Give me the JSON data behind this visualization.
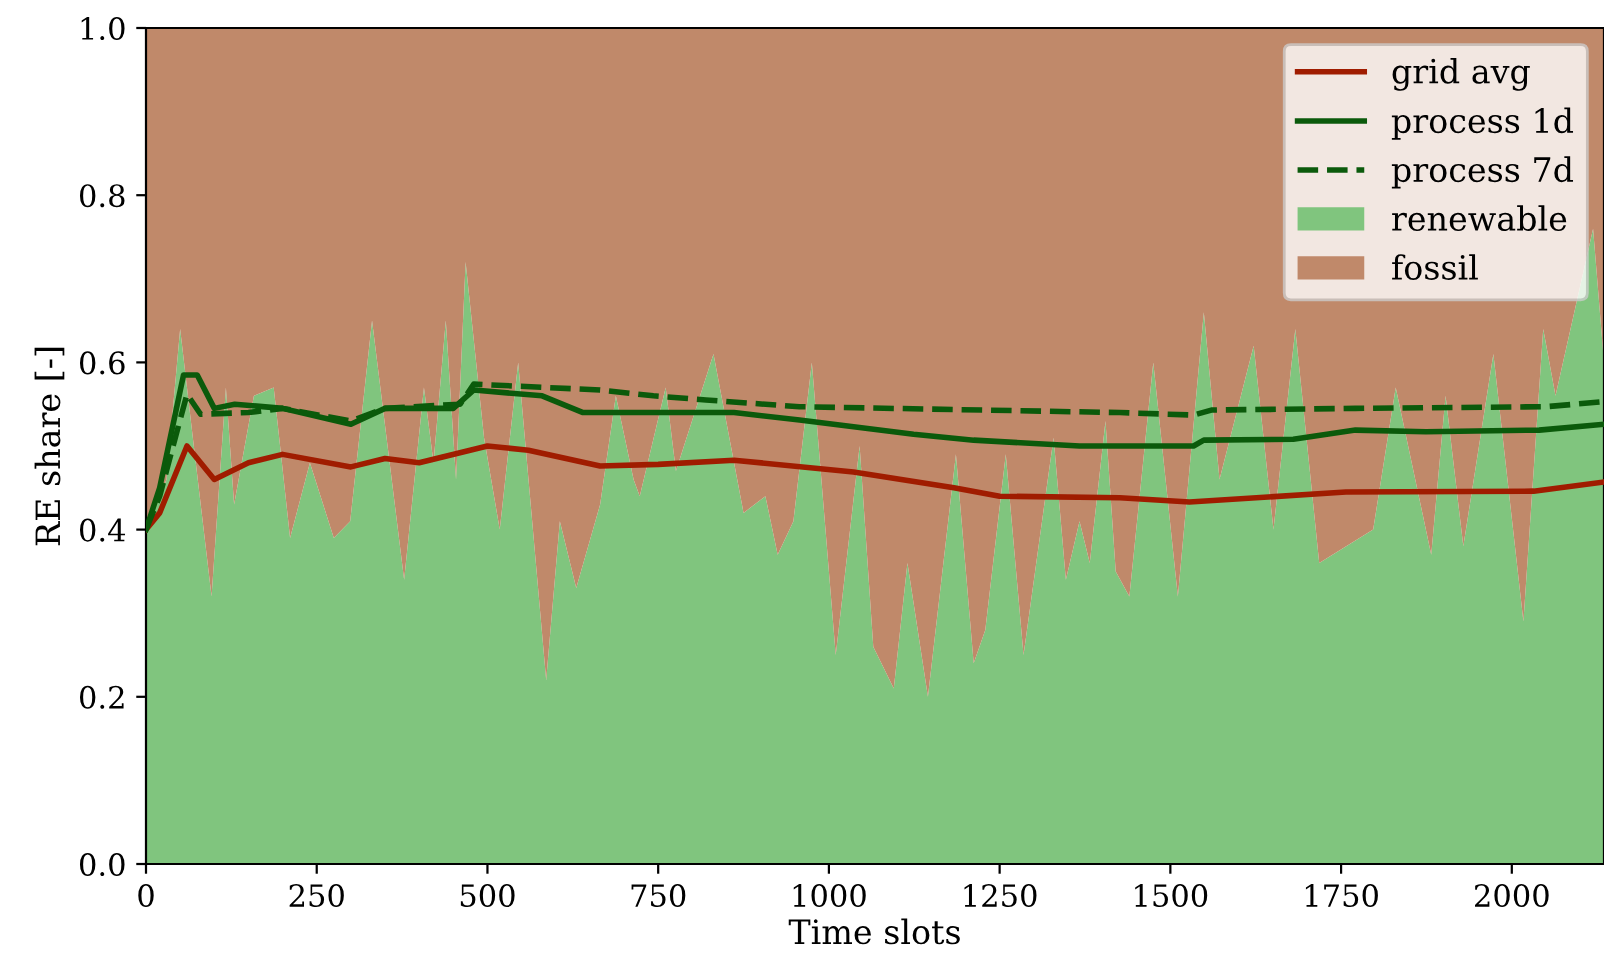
{
  "chart_data": {
    "type": "area",
    "stacked": true,
    "xlabel": "Time slots",
    "ylabel": "RE share [-]",
    "xlim": [
      0,
      2135
    ],
    "ylim": [
      0,
      1
    ],
    "xticks": [
      0,
      250,
      500,
      750,
      1000,
      1250,
      1500,
      1750,
      2000
    ],
    "yticks": [
      {
        "value": 0,
        "label": "0.0"
      },
      0.2,
      0.4,
      0.6,
      0.8,
      {
        "value": 1,
        "label": "1.0"
      }
    ],
    "grid": false,
    "legend": "top right",
    "series": [
      {
        "name": "grid avg",
        "type": "line",
        "line_style": "solid",
        "color": "#a01c00",
        "x": [
          0,
          20,
          60,
          100,
          150,
          200,
          300,
          350,
          400,
          500,
          560,
          665,
          750,
          861,
          1036,
          1183,
          1250,
          1426,
          1528,
          1757,
          2032,
          2135
        ],
        "values": [
          0.4,
          0.42,
          0.5,
          0.46,
          0.48,
          0.49,
          0.475,
          0.485,
          0.48,
          0.5,
          0.495,
          0.476,
          0.478,
          0.483,
          0.469,
          0.45,
          0.44,
          0.438,
          0.433,
          0.445,
          0.446,
          0.457
        ]
      },
      {
        "name": "process 1d",
        "type": "line",
        "line_style": "solid",
        "color": "#0b5a0b",
        "x": [
          0,
          20,
          55,
          75,
          100,
          130,
          200,
          300,
          350,
          450,
          480,
          580,
          640,
          714,
          861,
          957,
          1124,
          1212,
          1367,
          1534,
          1549,
          1680,
          1771,
          1874,
          2040,
          2135
        ],
        "values": [
          0.4,
          0.45,
          0.585,
          0.585,
          0.545,
          0.55,
          0.545,
          0.526,
          0.545,
          0.545,
          0.567,
          0.56,
          0.54,
          0.54,
          0.54,
          0.531,
          0.514,
          0.507,
          0.5,
          0.5,
          0.507,
          0.508,
          0.519,
          0.517,
          0.519,
          0.526
        ]
      },
      {
        "name": "process 7d",
        "type": "line",
        "line_style": "dashed",
        "color": "#0b5a0b",
        "x": [
          0,
          20,
          60,
          80,
          150,
          200,
          300,
          350,
          460,
          480,
          665,
          743,
          820,
          957,
          1426,
          1534,
          1560,
          1771,
          2050,
          2135
        ],
        "values": [
          0.4,
          0.44,
          0.562,
          0.538,
          0.54,
          0.545,
          0.53,
          0.545,
          0.55,
          0.574,
          0.567,
          0.56,
          0.555,
          0.547,
          0.54,
          0.537,
          0.543,
          0.545,
          0.547,
          0.553
        ]
      },
      {
        "name": "renewable",
        "color": "#80c57e",
        "x": [
          0,
          30,
          50,
          70,
          96,
          117,
          129,
          158,
          187,
          211,
          240,
          275,
          299,
          331,
          378,
          407,
          421,
          439,
          454,
          468,
          495,
          518,
          545,
          586,
          606,
          630,
          665,
          688,
          714,
          723,
          761,
          776,
          831,
          875,
          907,
          925,
          948,
          975,
          1010,
          1045,
          1065,
          1095,
          1115,
          1145,
          1186,
          1212,
          1229,
          1259,
          1285,
          1329,
          1347,
          1367,
          1382,
          1405,
          1420,
          1440,
          1475,
          1511,
          1549,
          1572,
          1622,
          1651,
          1683,
          1718,
          1797,
          1830,
          1882,
          1903,
          1929,
          1973,
          2017,
          2046,
          2064,
          2119,
          2135
        ],
        "values": [
          0.4,
          0.46,
          0.64,
          0.5,
          0.32,
          0.57,
          0.43,
          0.56,
          0.57,
          0.39,
          0.48,
          0.39,
          0.41,
          0.65,
          0.34,
          0.57,
          0.48,
          0.65,
          0.46,
          0.72,
          0.51,
          0.4,
          0.6,
          0.22,
          0.41,
          0.33,
          0.43,
          0.56,
          0.46,
          0.44,
          0.57,
          0.47,
          0.61,
          0.42,
          0.44,
          0.37,
          0.41,
          0.6,
          0.25,
          0.5,
          0.26,
          0.21,
          0.36,
          0.2,
          0.49,
          0.24,
          0.28,
          0.49,
          0.25,
          0.51,
          0.34,
          0.41,
          0.36,
          0.53,
          0.35,
          0.32,
          0.6,
          0.32,
          0.66,
          0.46,
          0.62,
          0.4,
          0.64,
          0.36,
          0.4,
          0.57,
          0.37,
          0.56,
          0.38,
          0.61,
          0.29,
          0.64,
          0.56,
          0.76,
          0.6
        ]
      },
      {
        "name": "fossil",
        "color": "#c0896a",
        "x": [
          0,
          30,
          50,
          70,
          96,
          117,
          129,
          158,
          187,
          211,
          240,
          275,
          299,
          331,
          378,
          407,
          421,
          439,
          454,
          468,
          495,
          518,
          545,
          586,
          606,
          630,
          665,
          688,
          714,
          723,
          761,
          776,
          831,
          875,
          907,
          925,
          948,
          975,
          1010,
          1045,
          1065,
          1095,
          1115,
          1145,
          1186,
          1212,
          1229,
          1259,
          1285,
          1329,
          1347,
          1367,
          1382,
          1405,
          1420,
          1440,
          1475,
          1511,
          1549,
          1572,
          1622,
          1651,
          1683,
          1718,
          1797,
          1830,
          1882,
          1903,
          1929,
          1973,
          2017,
          2046,
          2064,
          2119,
          2135
        ],
        "values": [
          0.6,
          0.54,
          0.36,
          0.5,
          0.68,
          0.43,
          0.57,
          0.44,
          0.43,
          0.61,
          0.52,
          0.61,
          0.59,
          0.35,
          0.66,
          0.43,
          0.52,
          0.35,
          0.54,
          0.28,
          0.49,
          0.6,
          0.4,
          0.78,
          0.59,
          0.67,
          0.57,
          0.44,
          0.54,
          0.56,
          0.43,
          0.53,
          0.39,
          0.58,
          0.56,
          0.63,
          0.59,
          0.4,
          0.75,
          0.5,
          0.74,
          0.79,
          0.64,
          0.8,
          0.51,
          0.76,
          0.72,
          0.51,
          0.75,
          0.49,
          0.66,
          0.59,
          0.64,
          0.47,
          0.65,
          0.68,
          0.4,
          0.68,
          0.34,
          0.54,
          0.38,
          0.6,
          0.36,
          0.64,
          0.6,
          0.43,
          0.63,
          0.44,
          0.62,
          0.39,
          0.71,
          0.36,
          0.44,
          0.24,
          0.4
        ]
      }
    ]
  }
}
